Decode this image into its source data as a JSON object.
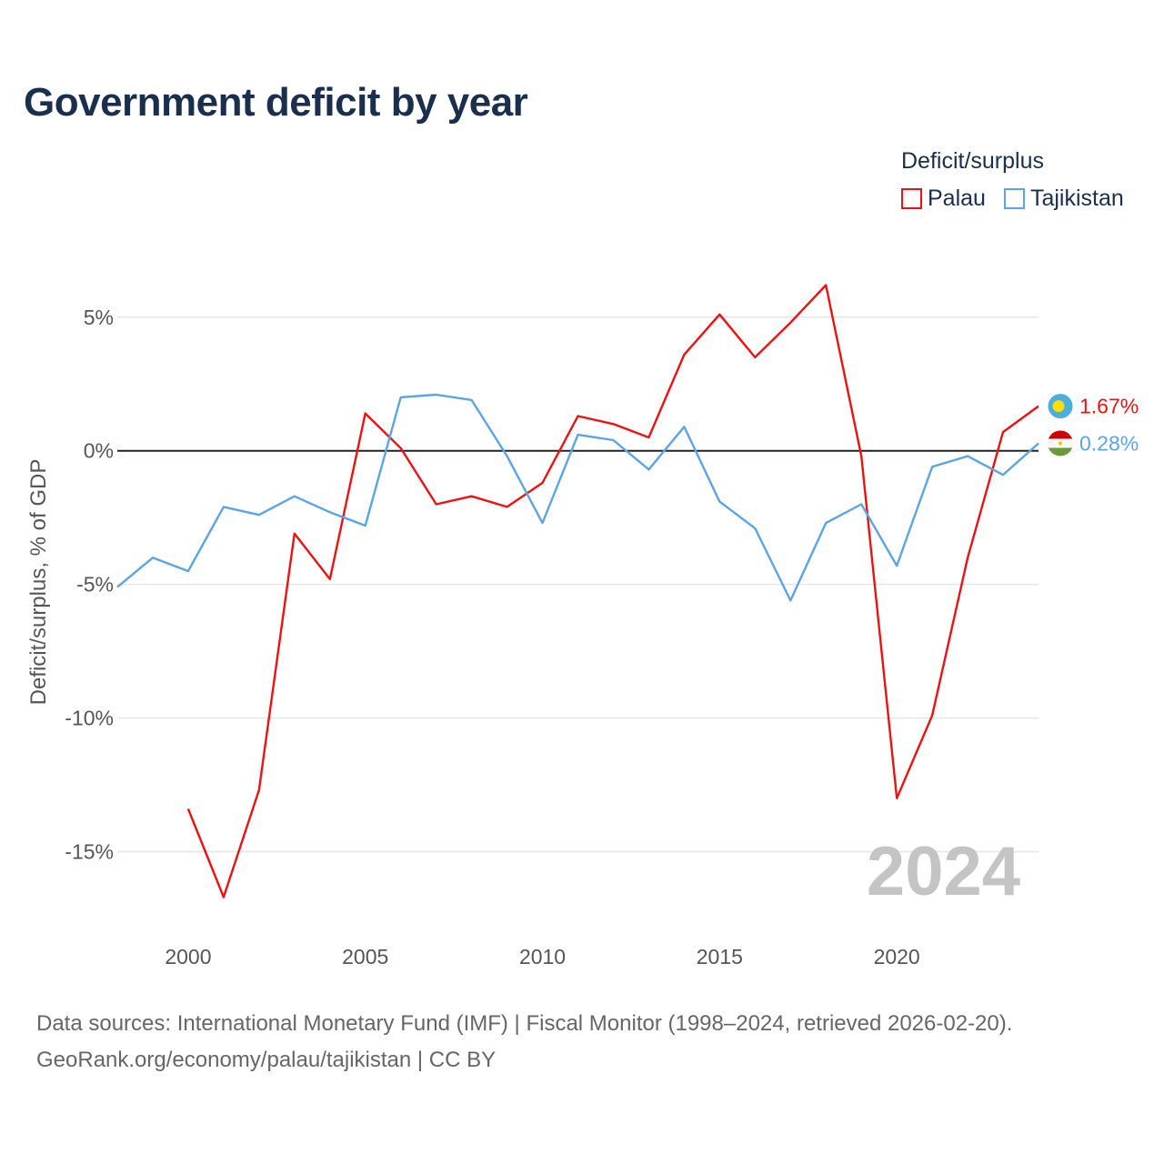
{
  "title": "Government deficit by year",
  "legend": {
    "title": "Deficit/surplus",
    "items": [
      {
        "name": "Palau",
        "color": "#ee1111"
      },
      {
        "name": "Tajikistan",
        "color": "#5ba4e5"
      }
    ]
  },
  "source": {
    "line1": "Data sources: International Monetary Fund (IMF) | Fiscal Monitor (1998–2024, retrieved 2026-02-20).",
    "line2": "GeoRank.org/economy/palau/tajikistan | CC BY"
  },
  "chart_data": {
    "type": "line",
    "title": "Government deficit by year",
    "xlabel": "",
    "ylabel": "Deficit/surplus, % of GDP",
    "xlim": [
      1998,
      2024
    ],
    "ylim": [
      -17.5,
      7
    ],
    "xticks": [
      2000,
      2005,
      2010,
      2015,
      2020
    ],
    "xtick_labels": [
      "2000",
      "2005",
      "2010",
      "2015",
      "2020"
    ],
    "yticks": [
      5,
      0,
      -5,
      -10,
      -15
    ],
    "ytick_labels": [
      "5%",
      "0%",
      "-5%",
      "-10%",
      "-15%"
    ],
    "watermark_year": "2024",
    "series": [
      {
        "name": "Palau",
        "color": "#ee1111",
        "end_label": "1.67%",
        "flag_icon": "palau-flag-icon",
        "x": [
          2000,
          2001,
          2002,
          2003,
          2004,
          2005,
          2006,
          2007,
          2008,
          2009,
          2010,
          2011,
          2012,
          2013,
          2014,
          2015,
          2016,
          2017,
          2018,
          2019,
          2020,
          2021,
          2022,
          2023,
          2024
        ],
        "values": [
          -13.4,
          -16.7,
          -12.7,
          -3.1,
          -4.8,
          1.4,
          0.1,
          -2.0,
          -1.7,
          -2.1,
          -1.2,
          1.3,
          1.0,
          0.5,
          3.6,
          5.1,
          3.5,
          4.8,
          6.2,
          -0.2,
          -13.0,
          -9.9,
          -4.0,
          0.7,
          1.67
        ]
      },
      {
        "name": "Tajikistan",
        "color": "#5ba4e5",
        "end_label": "0.28%",
        "flag_icon": "tajikistan-flag-icon",
        "x": [
          1998,
          1999,
          2000,
          2001,
          2002,
          2003,
          2004,
          2005,
          2006,
          2007,
          2008,
          2009,
          2010,
          2011,
          2012,
          2013,
          2014,
          2015,
          2016,
          2017,
          2018,
          2019,
          2020,
          2021,
          2022,
          2023,
          2024
        ],
        "values": [
          -5.1,
          -4.0,
          -4.5,
          -2.1,
          -2.4,
          -1.7,
          -2.3,
          -2.8,
          2.0,
          2.1,
          1.9,
          -0.2,
          -2.7,
          0.6,
          0.4,
          -0.7,
          0.9,
          -1.9,
          -2.9,
          -5.6,
          -2.7,
          -2.0,
          -4.3,
          -0.6,
          -0.2,
          -0.9,
          0.28
        ]
      }
    ]
  }
}
